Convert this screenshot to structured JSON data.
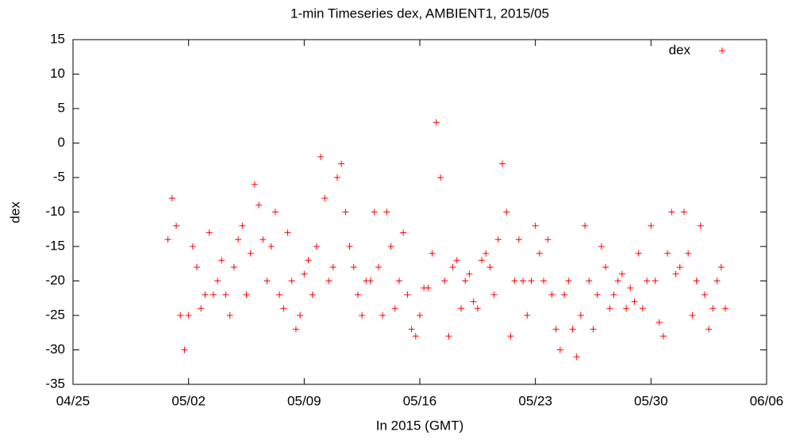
{
  "chart_data": {
    "type": "scatter",
    "title": "1-min Timeseries dex, AMBIENT1, 2015/05",
    "x_label": "In 2015 (GMT)",
    "y_label": "dex",
    "xlim": [
      115,
      157
    ],
    "xticks": [
      {
        "value": 115,
        "label": "04/25"
      },
      {
        "value": 122,
        "label": "05/02"
      },
      {
        "value": 129,
        "label": "05/09"
      },
      {
        "value": 136,
        "label": "05/16"
      },
      {
        "value": 143,
        "label": "05/23"
      },
      {
        "value": 150,
        "label": "05/30"
      },
      {
        "value": 157,
        "label": "06/06"
      }
    ],
    "ylim": [
      -35,
      15
    ],
    "yticks": [
      -35,
      -30,
      -25,
      -20,
      -15,
      -10,
      -5,
      0,
      5,
      10,
      15
    ],
    "legend": "top-right",
    "x": [
      120.75,
      121,
      121.25,
      121.5,
      121.75,
      122,
      122.25,
      122.5,
      122.75,
      123,
      123.25,
      123.5,
      123.75,
      124,
      124.25,
      124.5,
      124.75,
      125,
      125.25,
      125.5,
      125.75,
      126,
      126.25,
      126.5,
      126.75,
      127,
      127.25,
      127.5,
      127.75,
      128,
      128.25,
      128.5,
      128.75,
      129,
      129.25,
      129.5,
      129.75,
      130,
      130.25,
      130.5,
      130.75,
      131,
      131.25,
      131.5,
      131.75,
      132,
      132.25,
      132.5,
      132.75,
      133,
      133.25,
      133.5,
      133.75,
      134,
      134.25,
      134.5,
      134.75,
      135,
      135.25,
      135.5,
      135.75,
      136,
      136.25,
      136.5,
      136.75,
      137,
      137.25,
      137.5,
      137.75,
      138,
      138.25,
      138.5,
      138.75,
      139,
      139.25,
      139.5,
      139.75,
      140,
      140.25,
      140.5,
      140.75,
      141,
      141.25,
      141.5,
      141.75,
      142,
      142.25,
      142.5,
      142.75,
      143,
      143.25,
      143.5,
      143.75,
      144,
      144.25,
      144.5,
      144.75,
      145,
      145.25,
      145.5,
      145.75,
      146,
      146.25,
      146.5,
      146.75,
      147,
      147.25,
      147.5,
      147.75,
      148,
      148.25,
      148.5,
      148.75,
      149,
      149.25,
      149.5,
      149.75,
      150,
      150.25,
      150.5,
      150.75,
      151,
      151.25,
      151.5,
      151.75,
      152,
      152.25,
      152.5,
      152.75,
      153,
      153.25,
      153.5,
      153.75,
      154,
      154.25,
      154.5
    ],
    "series": [
      {
        "name": "dex",
        "color": "#ff0000",
        "values": [
          -14,
          -8,
          -12,
          -25,
          -30,
          -25,
          -15,
          -18,
          -24,
          -22,
          -13,
          -22,
          -20,
          -17,
          -22,
          -25,
          -18,
          -14,
          -12,
          -22,
          -16,
          -6,
          -9,
          -14,
          -20,
          -15,
          -10,
          -22,
          -24,
          -13,
          -20,
          -27,
          -25,
          -19,
          -17,
          -22,
          -15,
          -2,
          -8,
          -20,
          -18,
          -5,
          -3,
          -10,
          -15,
          -18,
          -22,
          -25,
          -20,
          -20,
          -10,
          -18,
          -25,
          -10,
          -15,
          -24,
          -20,
          -13,
          -22,
          -27,
          -28,
          -25,
          -21,
          -21,
          -16,
          3,
          -5,
          -20,
          -28,
          -18,
          -17,
          -24,
          -20,
          -19,
          -23,
          -24,
          -17,
          -16,
          -18,
          -22,
          -14,
          -3,
          -10,
          -28,
          -20,
          -14,
          -20,
          -25,
          -20,
          -12,
          -16,
          -20,
          -14,
          -22,
          -27,
          -30,
          -22,
          -20,
          -27,
          -31,
          -25,
          -12,
          -20,
          -27,
          -22,
          -15,
          -18,
          -24,
          -22,
          -20,
          -19,
          -24,
          -21,
          -23,
          -16,
          -24,
          -20,
          -12,
          -20,
          -26,
          -28,
          -16,
          -10,
          -19,
          -18,
          -10,
          -16,
          -25,
          -20,
          -12,
          -22,
          -27,
          -24,
          -20,
          -18,
          -24
        ]
      }
    ]
  }
}
